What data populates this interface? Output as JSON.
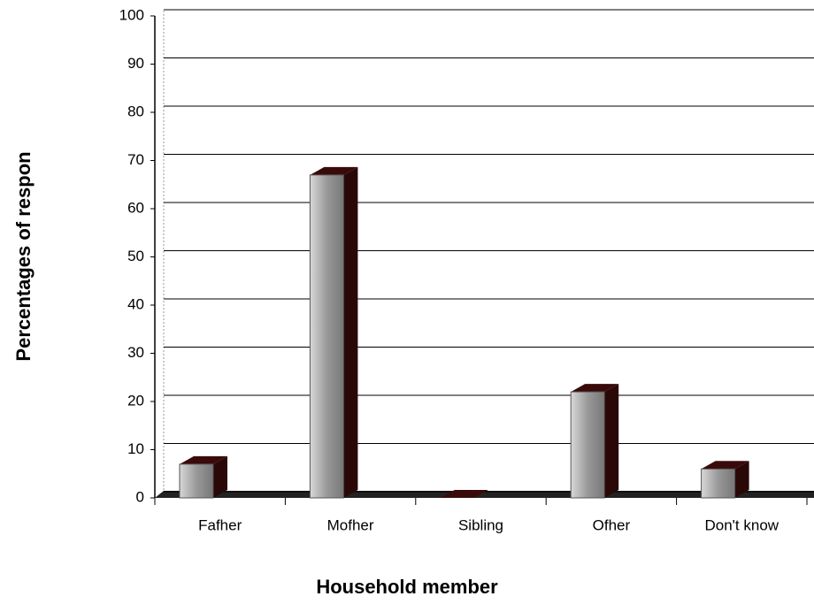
{
  "chart_data": {
    "type": "bar",
    "categories": [
      "Fafher",
      "Mofher",
      "Sibling",
      "Ofher",
      "Don't know"
    ],
    "values": [
      7,
      67,
      0,
      22,
      6
    ],
    "color": "#9a9a9a",
    "x_label": "Household member",
    "y_label": "Percentages of respon",
    "ylim": [
      0,
      100
    ],
    "yticks": [
      0,
      10,
      20,
      30,
      40,
      50,
      60,
      70,
      80,
      90,
      100
    ],
    "grid": true
  }
}
